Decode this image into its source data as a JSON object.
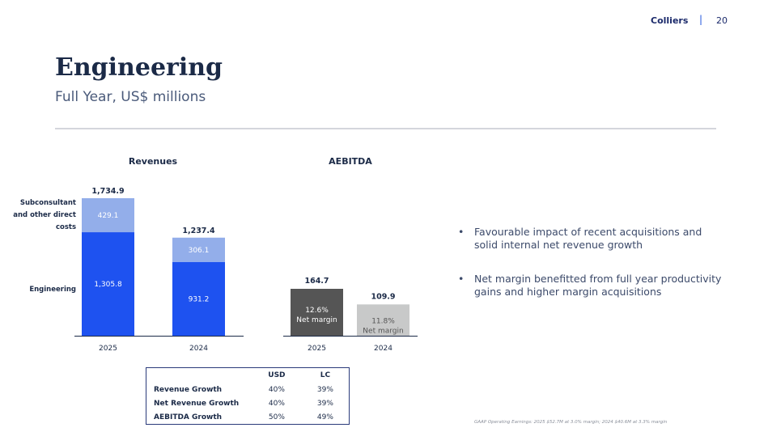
{
  "header": {
    "brand": "Colliers",
    "separator": "|",
    "page_number": "20"
  },
  "title": "Engineering",
  "subtitle": "Full Year, US$ millions",
  "chart_data": [
    {
      "type": "bar",
      "title": "Revenues",
      "categories": [
        "2025",
        "2024"
      ],
      "series": [
        {
          "name": "Engineering",
          "values": [
            1305.8,
            931.2
          ],
          "labels": [
            "1,305.8",
            "931.2"
          ],
          "color": "#1e52f0"
        },
        {
          "name": "Subconsultant and other direct costs",
          "values": [
            429.1,
            306.1
          ],
          "labels": [
            "429.1",
            "306.1"
          ],
          "color": "#93aeea"
        }
      ],
      "totals": [
        1734.9,
        1237.4
      ],
      "total_labels": [
        "1,734.9",
        "1,237.4"
      ],
      "legend": [
        "Subconsultant and other direct costs",
        "Engineering"
      ],
      "stacked": true
    },
    {
      "type": "bar",
      "title": "AEBITDA",
      "categories": [
        "2025",
        "2024"
      ],
      "values": [
        164.7,
        109.9
      ],
      "value_labels": [
        "164.7",
        "109.9"
      ],
      "annotations": [
        [
          "12.6%",
          "Net margin"
        ],
        [
          "11.8%",
          "Net margin"
        ]
      ],
      "colors": [
        "#555555",
        "#c8c9c9"
      ],
      "annotation_colors": [
        "#ffffff",
        "#555555"
      ]
    }
  ],
  "bullets": [
    "Favourable impact of recent acquisitions and solid internal net revenue growth",
    "Net margin benefitted from full year productivity gains and higher margin acquisitions"
  ],
  "growth_table": {
    "columns": [
      "USD",
      "LC"
    ],
    "rows": [
      {
        "label": "Revenue Growth",
        "usd": "40%",
        "lc": "39%"
      },
      {
        "label": "Net Revenue Growth",
        "usd": "40%",
        "lc": "39%"
      },
      {
        "label": "AEBITDA Growth",
        "usd": "50%",
        "lc": "49%"
      }
    ]
  },
  "footnote": "GAAP Operating Earnings: 2025 $52.7M at 3.0% margin; 2024 $40.6M at 3.3% margin",
  "colors": {
    "navy": "#1b2a47",
    "engineering_blue": "#1e52f0",
    "subconsultant_blue": "#93aeea",
    "aebitda_2025": "#555555",
    "aebitda_2024": "#c8c9c9"
  }
}
